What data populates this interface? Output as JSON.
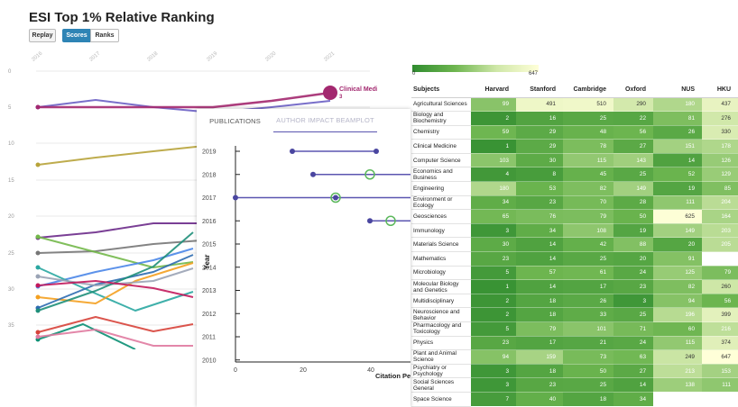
{
  "esi": {
    "title": "ESI Top 1% Relative Ranking",
    "buttons": {
      "replay": "Replay",
      "scores": "Scores",
      "ranks": "Ranks"
    },
    "x_ticks": [
      "2016",
      "2017",
      "2018",
      "2019",
      "2020",
      "2021"
    ],
    "y_ticks": [
      "0",
      "5",
      "10",
      "15",
      "20",
      "25",
      "30",
      "35"
    ],
    "highlight_label": "Clinical Medici",
    "highlight_rank": "3",
    "colors": {
      "active": "#2e84b5",
      "highlight": "#a3286f"
    }
  },
  "heat": {
    "legend_min": "0",
    "legend_max": "647",
    "columns": [
      "Subjects",
      "Harvard",
      "Stanford",
      "Cambridge",
      "Oxford",
      "NUS",
      "HKU"
    ],
    "rows": [
      {
        "subject": "Agricultural Sciences",
        "values": [
          "99",
          "491",
          "510",
          "290",
          "180",
          "437"
        ]
      },
      {
        "subject": "Biology and Biochemistry",
        "values": [
          "2",
          "16",
          "25",
          "22",
          "81",
          "276"
        ]
      },
      {
        "subject": "Chemistry",
        "values": [
          "59",
          "29",
          "48",
          "56",
          "26",
          "330"
        ]
      },
      {
        "subject": "Clinical Medicine",
        "values": [
          "1",
          "29",
          "78",
          "27",
          "151",
          "178"
        ]
      },
      {
        "subject": "Computer Science",
        "values": [
          "103",
          "30",
          "115",
          "143",
          "14",
          "126"
        ]
      },
      {
        "subject": "Economics and Business",
        "values": [
          "4",
          "8",
          "45",
          "25",
          "52",
          "129"
        ]
      },
      {
        "subject": "Engineering",
        "values": [
          "180",
          "53",
          "82",
          "149",
          "19",
          "85"
        ]
      },
      {
        "subject": "Environment or Ecology",
        "values": [
          "34",
          "23",
          "70",
          "28",
          "111",
          "204"
        ]
      },
      {
        "subject": "Geosciences",
        "values": [
          "65",
          "76",
          "79",
          "50",
          "625",
          "164"
        ]
      },
      {
        "subject": "Immunology",
        "values": [
          "3",
          "34",
          "108",
          "19",
          "149",
          "203"
        ]
      },
      {
        "subject": "Materials Science",
        "values": [
          "30",
          "14",
          "42",
          "88",
          "20",
          "205"
        ]
      },
      {
        "subject": "Mathematics",
        "values": [
          "23",
          "14",
          "25",
          "20",
          "91",
          ""
        ]
      },
      {
        "subject": "Microbiology",
        "values": [
          "5",
          "57",
          "61",
          "24",
          "125",
          "79"
        ]
      },
      {
        "subject": "Molecular Biology and Genetics",
        "values": [
          "1",
          "14",
          "17",
          "23",
          "82",
          "260"
        ]
      },
      {
        "subject": "Multidisciplinary",
        "values": [
          "2",
          "18",
          "26",
          "3",
          "94",
          "56"
        ]
      },
      {
        "subject": "Neuroscience and Behavior",
        "values": [
          "2",
          "18",
          "33",
          "25",
          "196",
          "399"
        ]
      },
      {
        "subject": "Pharmacology and Toxicology",
        "values": [
          "5",
          "79",
          "101",
          "71",
          "60",
          "216"
        ]
      },
      {
        "subject": "Physics",
        "values": [
          "23",
          "17",
          "21",
          "24",
          "115",
          "374"
        ]
      },
      {
        "subject": "Plant and Animal Science",
        "values": [
          "94",
          "159",
          "73",
          "63",
          "249",
          "647"
        ]
      },
      {
        "subject": "Psychiatry or Psychology",
        "values": [
          "3",
          "18",
          "50",
          "27",
          "213",
          "153"
        ]
      },
      {
        "subject": "Social Sciences General",
        "values": [
          "3",
          "23",
          "25",
          "14",
          "138",
          "111"
        ]
      },
      {
        "subject": "Space Science",
        "values": [
          "7",
          "40",
          "18",
          "34",
          "",
          ""
        ]
      }
    ]
  },
  "beamplot": {
    "tabs": [
      "PUBLICATIONS",
      "AUTHOR IMPACT BEAMPLOT"
    ],
    "y_title": "Year",
    "x_title": "Citation Pe",
    "colors": {
      "line": "#5b55b0",
      "dot": "#4a46a0",
      "median": "#5cb85c"
    }
  }
}
